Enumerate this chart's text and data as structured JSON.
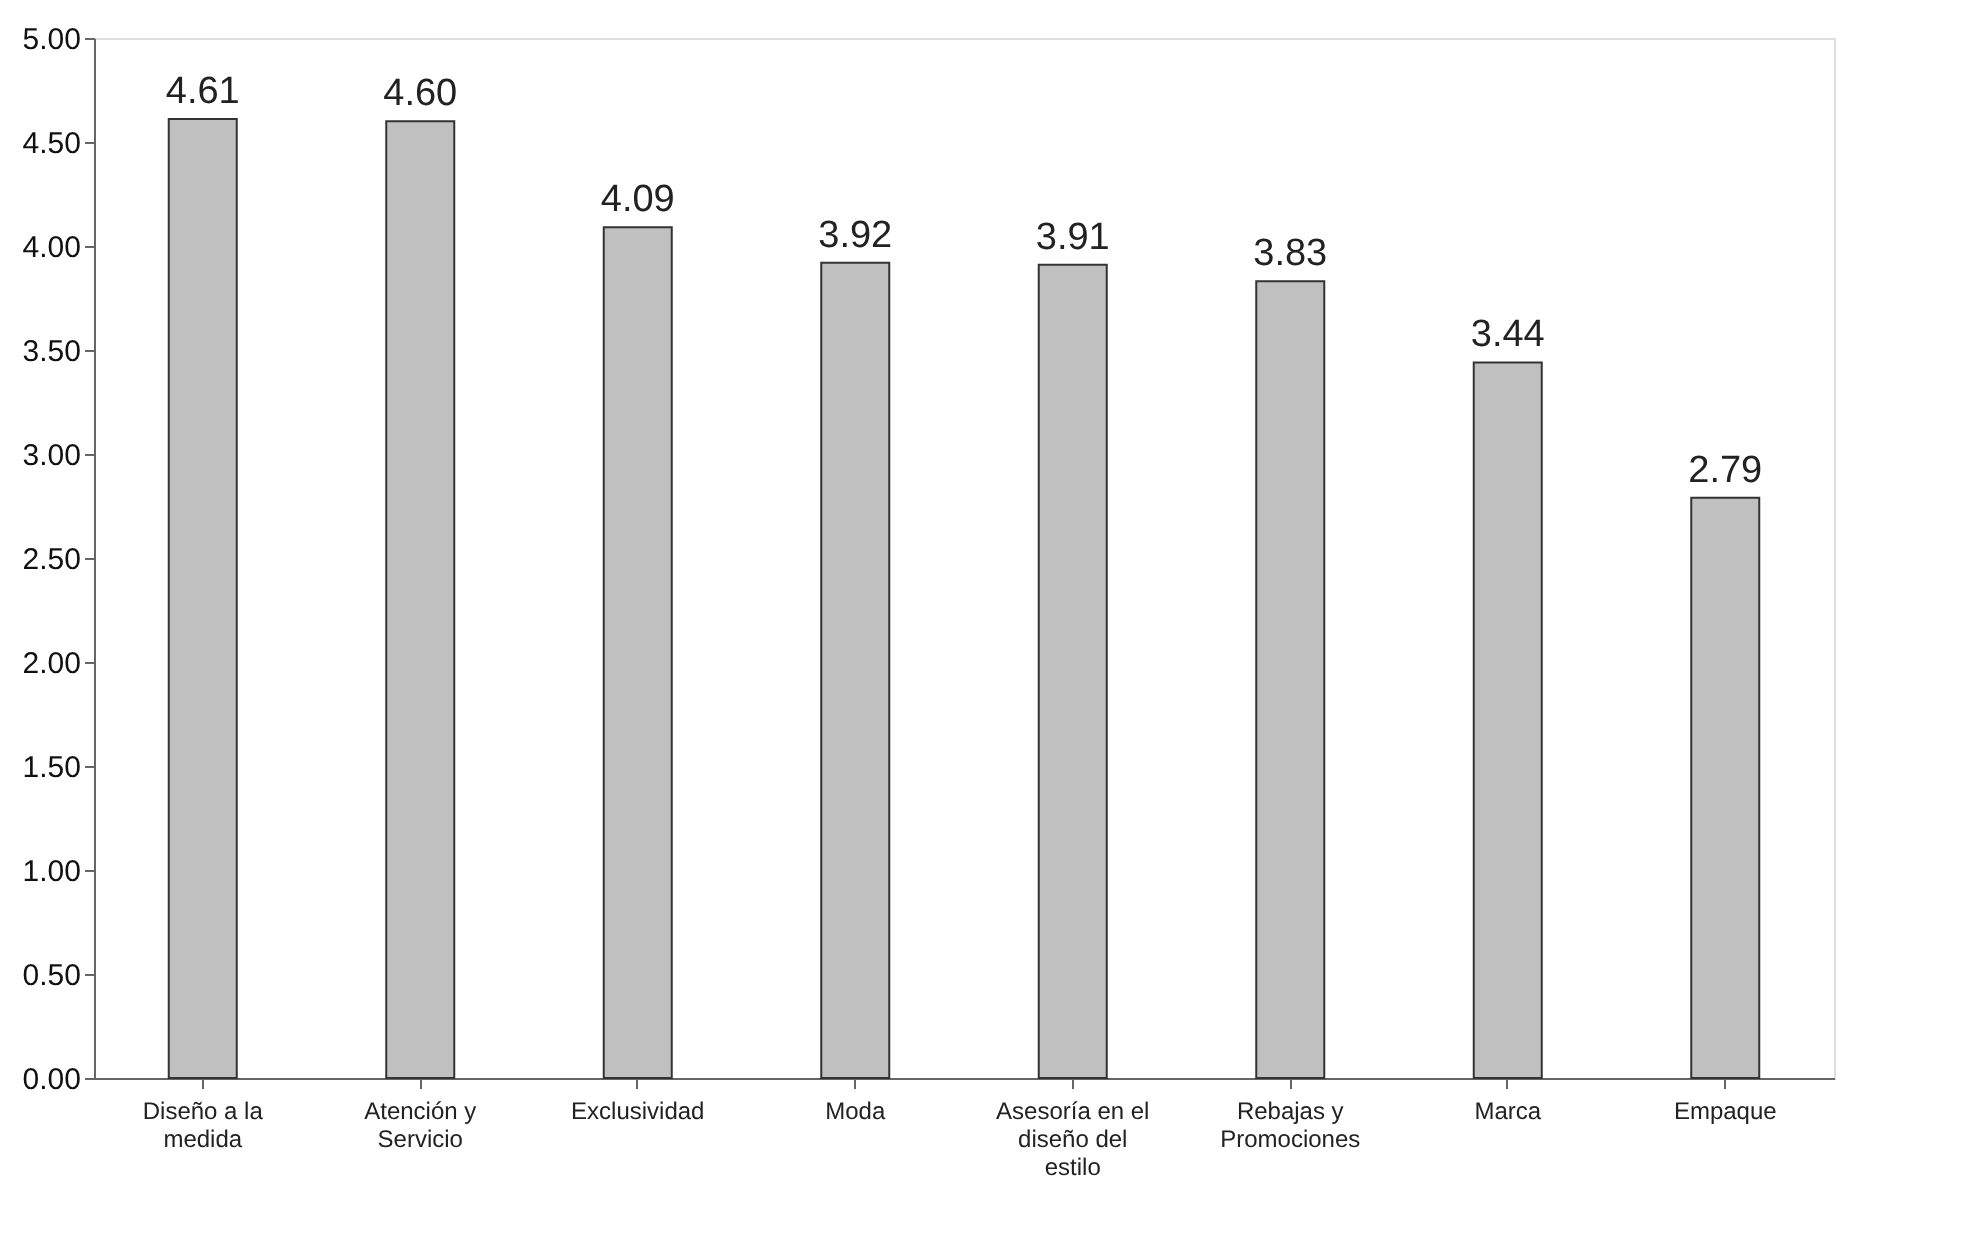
{
  "chart_data": {
    "type": "bar",
    "categories": [
      "Diseño a la medida",
      "Atención y Servicio",
      "Exclusividad",
      "Moda",
      "Asesoría en el diseño del estilo",
      "Rebajas y Promociones",
      "Marca",
      "Empaque"
    ],
    "values": [
      4.61,
      4.6,
      4.09,
      3.92,
      3.91,
      3.83,
      3.44,
      2.79
    ],
    "value_labels": [
      "4.61",
      "4.60",
      "4.09",
      "3.92",
      "3.91",
      "3.83",
      "3.44",
      "2.79"
    ],
    "color": "#c0c0c0",
    "ylim": [
      0,
      5
    ],
    "yticks": [
      {
        "value": 0,
        "label": "0.00"
      },
      {
        "value": 0.5,
        "label": "0.50"
      },
      {
        "value": 1,
        "label": "1.00"
      },
      {
        "value": 1.5,
        "label": "1.50"
      },
      {
        "value": 2,
        "label": "2.00"
      },
      {
        "value": 2.5,
        "label": "2.50"
      },
      {
        "value": 3,
        "label": "3.00"
      },
      {
        "value": 3.5,
        "label": "3.50"
      },
      {
        "value": 4,
        "label": "4.00"
      },
      {
        "value": 4.5,
        "label": "4.50"
      },
      {
        "value": 5,
        "label": "5.00"
      }
    ],
    "grid": false
  }
}
